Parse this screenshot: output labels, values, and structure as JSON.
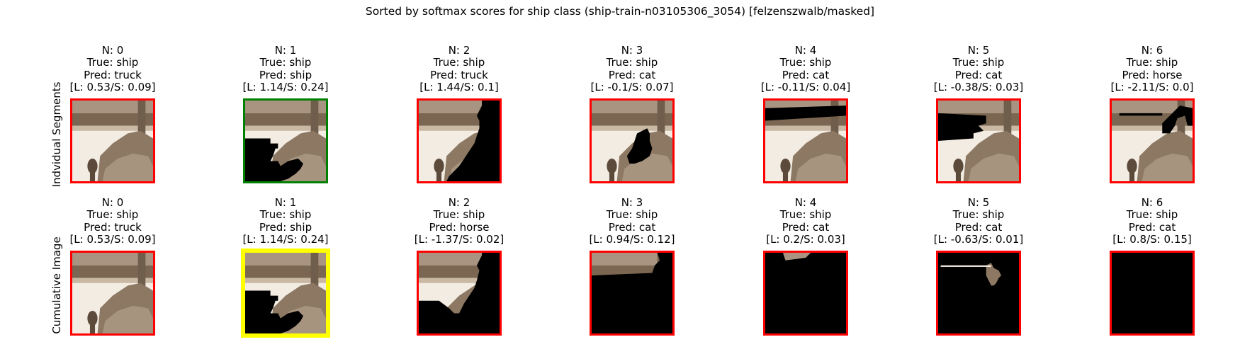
{
  "figure": {
    "title": "Sorted by softmax scores for ship class (ship-train-n03105306_3054) [felzenszwalb/masked]",
    "row_labels": [
      "Indvidual Segments",
      "Cumulative Image"
    ]
  },
  "colors": {
    "incorrect": "#ff0000",
    "correct": "#008000",
    "best": "#ffff00",
    "mask": "#000000"
  },
  "chart_data": {
    "type": "image-grid",
    "rows": [
      {
        "label": "Indvidual Segments",
        "panels": [
          {
            "n": "N: 0",
            "true": "True: ship",
            "pred": "Pred: truck",
            "score": "[L: 0.53/S: 0.09]",
            "border": "incorrect",
            "mask": "none"
          },
          {
            "n": "N: 1",
            "true": "True: ship",
            "pred": "Pred: ship",
            "score": "[L: 1.14/S: 0.24]",
            "border": "correct",
            "mask": "bottom-left"
          },
          {
            "n": "N: 2",
            "true": "True: ship",
            "pred": "Pred: truck",
            "score": "[L: 1.44/S: 0.1]",
            "border": "incorrect",
            "mask": "right-edge"
          },
          {
            "n": "N: 3",
            "true": "True: ship",
            "pred": "Pred: cat",
            "score": "[L: -0.1/S: 0.07]",
            "border": "incorrect",
            "mask": "center-right"
          },
          {
            "n": "N: 4",
            "true": "True: ship",
            "pred": "Pred: cat",
            "score": "[L: -0.11/S: 0.04]",
            "border": "incorrect",
            "mask": "top-strip"
          },
          {
            "n": "N: 5",
            "true": "True: ship",
            "pred": "Pred: cat",
            "score": "[L: -0.38/S: 0.03]",
            "border": "incorrect",
            "mask": "left-band"
          },
          {
            "n": "N: 6",
            "true": "True: ship",
            "pred": "Pred: horse",
            "score": "[L: -2.11/S: 0.0]",
            "border": "incorrect",
            "mask": "top-right"
          }
        ]
      },
      {
        "label": "Cumulative Image",
        "panels": [
          {
            "n": "N: 0",
            "true": "True: ship",
            "pred": "Pred: truck",
            "score": "[L: 0.53/S: 0.09]",
            "border": "incorrect",
            "mask": "none"
          },
          {
            "n": "N: 1",
            "true": "True: ship",
            "pred": "Pred: ship",
            "score": "[L: 1.14/S: 0.24]",
            "border": "best",
            "mask": "bottom-left"
          },
          {
            "n": "N: 2",
            "true": "True: ship",
            "pred": "Pred: horse",
            "score": "[L: -1.37/S: 0.02]",
            "border": "incorrect",
            "mask": "cum-2"
          },
          {
            "n": "N: 3",
            "true": "True: ship",
            "pred": "Pred: cat",
            "score": "[L: 0.94/S: 0.12]",
            "border": "incorrect",
            "mask": "cum-3"
          },
          {
            "n": "N: 4",
            "true": "True: ship",
            "pred": "Pred: cat",
            "score": "[L: 0.2/S: 0.03]",
            "border": "incorrect",
            "mask": "cum-4"
          },
          {
            "n": "N: 5",
            "true": "True: ship",
            "pred": "Pred: cat",
            "score": "[L: -0.63/S: 0.01]",
            "border": "incorrect",
            "mask": "cum-5"
          },
          {
            "n": "N: 6",
            "true": "True: ship",
            "pred": "Pred: cat",
            "score": "[L: 0.8/S: 0.15]",
            "border": "incorrect",
            "mask": "full"
          }
        ]
      }
    ]
  }
}
